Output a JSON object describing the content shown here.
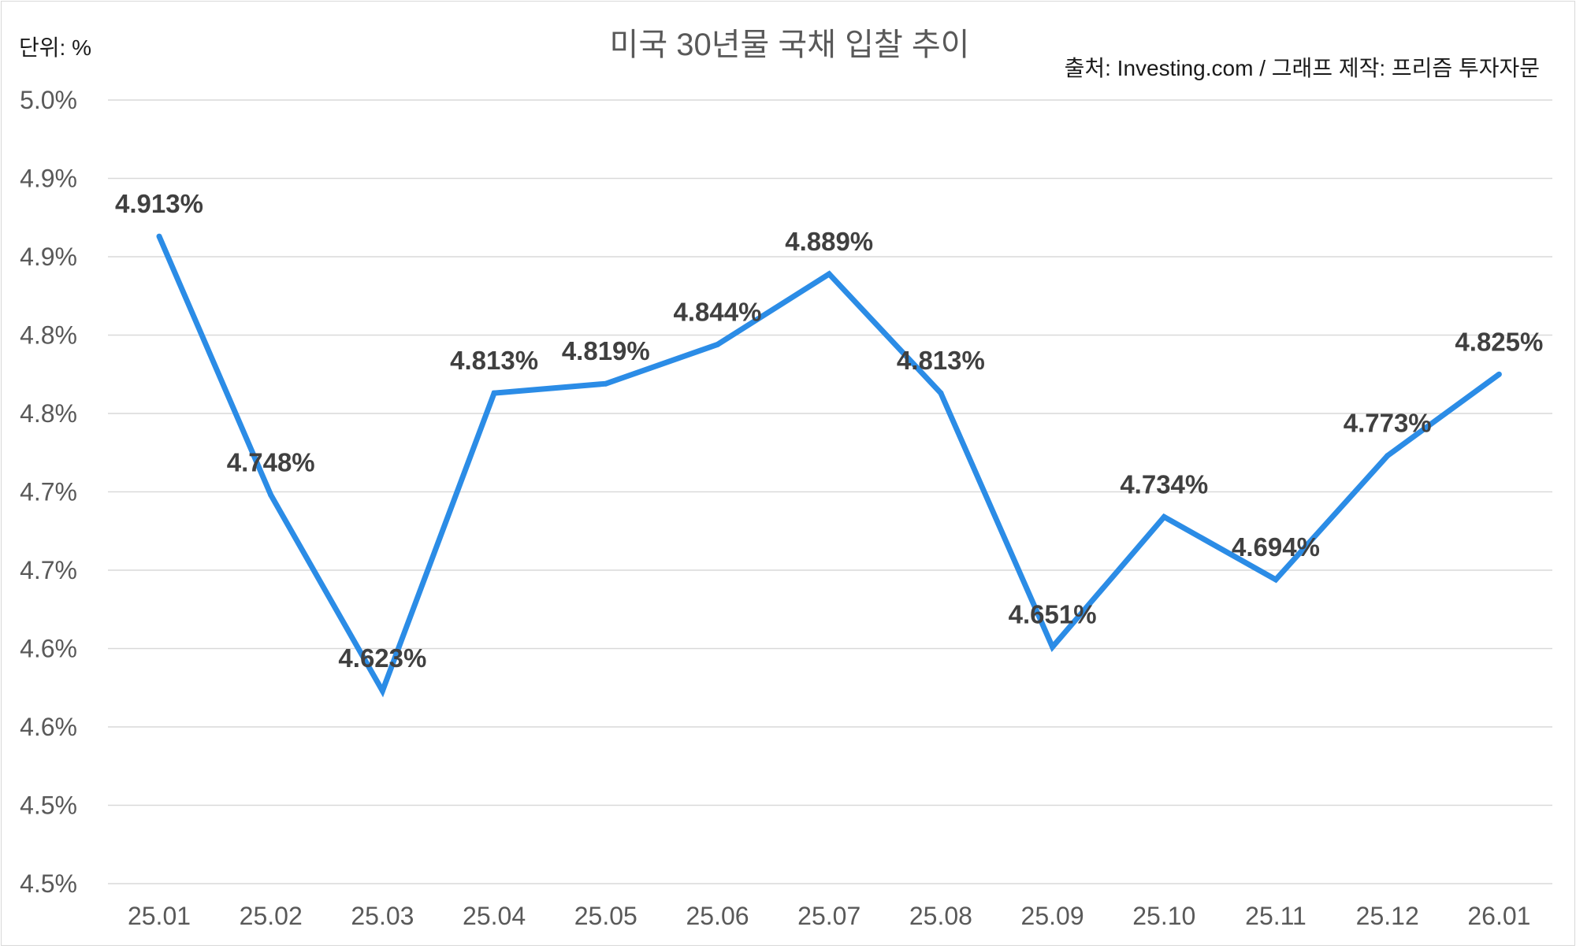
{
  "chart_data": {
    "type": "line",
    "title": "미국 30년물 국채 입찰 추이",
    "unit_label": "단위: %",
    "source_label": "출처: Investing.com / 그래프 제작: 프리즘 투자자문",
    "categories": [
      "25.01",
      "25.02",
      "25.03",
      "25.04",
      "25.05",
      "25.06",
      "25.07",
      "25.08",
      "25.09",
      "25.10",
      "25.11",
      "25.12",
      "26.01"
    ],
    "series": [
      {
        "values": [
          4.913,
          4.748,
          4.623,
          4.813,
          4.819,
          4.844,
          4.889,
          4.813,
          4.651,
          4.734,
          4.694,
          4.773,
          4.825
        ],
        "labels": [
          "4.913%",
          "4.748%",
          "4.623%",
          "4.813%",
          "4.819%",
          "4.844%",
          "4.889%",
          "4.813%",
          "4.651%",
          "4.734%",
          "4.694%",
          "4.773%",
          "4.825%"
        ],
        "color": "#2b8ce6"
      }
    ],
    "ylim": [
      4.5,
      5.0
    ],
    "yticks": [
      4.5,
      4.55,
      4.6,
      4.65,
      4.7,
      4.75,
      4.8,
      4.85,
      4.9,
      4.95,
      5.0
    ],
    "ytick_labels": [
      "4.5%",
      "4.5%",
      "4.6%",
      "4.6%",
      "4.7%",
      "4.7%",
      "4.8%",
      "4.8%",
      "4.9%",
      "4.9%",
      "5.0%"
    ],
    "grid": true,
    "legend": "none"
  }
}
